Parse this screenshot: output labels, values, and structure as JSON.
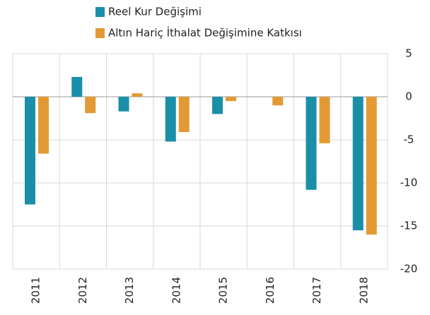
{
  "chart_data": {
    "type": "bar",
    "categories": [
      "2011",
      "2012",
      "2013",
      "2014",
      "2015",
      "2016",
      "2017",
      "2018"
    ],
    "series": [
      {
        "name": "Reel Kur Değişimi",
        "color": "#1a8fa8",
        "values": [
          -12.5,
          2.3,
          -1.7,
          -5.2,
          -2.0,
          0,
          -10.8,
          -15.5
        ]
      },
      {
        "name": "Altın Hariç İthalat Değişimine Katkısı",
        "color": "#e39a35",
        "values": [
          -6.6,
          -1.9,
          0.4,
          -4.1,
          -0.5,
          -1.0,
          -5.4,
          -16.0
        ]
      }
    ],
    "ylim": [
      -20,
      5
    ],
    "yticks": [
      5,
      0,
      -5,
      -10,
      -15,
      -20
    ],
    "grid": true
  }
}
